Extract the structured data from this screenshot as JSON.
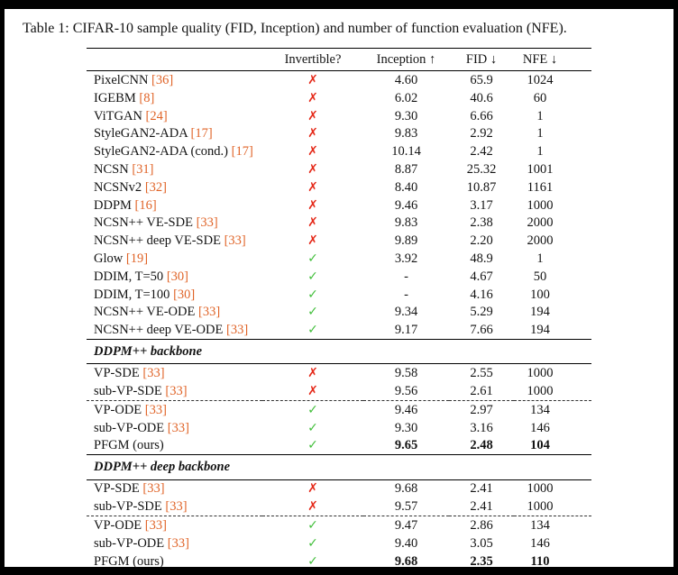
{
  "caption": "Table 1: CIFAR-10 sample quality (FID, Inception) and number of function evaluation (NFE).",
  "marks": {
    "cross": "✗",
    "check": "✓"
  },
  "colors": {
    "cite": "#e06428",
    "cross": "#e52a1a",
    "check": "#43bf3c"
  },
  "table": {
    "columns": [
      {
        "label": "",
        "align": "left",
        "name": "column-header-method"
      },
      {
        "label": "Invertible?",
        "align": "center",
        "name": "column-header-invertible"
      },
      {
        "label": "Inception ↑",
        "align": "center",
        "name": "column-header-inception"
      },
      {
        "label": "FID ↓",
        "align": "center",
        "name": "column-header-fid"
      },
      {
        "label": "NFE ↓",
        "align": "center",
        "name": "column-header-nfe"
      }
    ],
    "sections": [
      {
        "title": "",
        "groups": [
          {
            "rows": [
              {
                "method": "PixelCNN",
                "cite": "[36]",
                "invertible": false,
                "inception": "4.60",
                "fid": "65.9",
                "nfe": "1024",
                "emph": false
              },
              {
                "method": "IGEBM",
                "cite": "[8]",
                "invertible": false,
                "inception": "6.02",
                "fid": "40.6",
                "nfe": "60",
                "emph": false
              },
              {
                "method": "ViTGAN",
                "cite": "[24]",
                "invertible": false,
                "inception": "9.30",
                "fid": "6.66",
                "nfe": "1",
                "emph": false
              },
              {
                "method": "StyleGAN2-ADA",
                "cite": "[17]",
                "invertible": false,
                "inception": "9.83",
                "fid": "2.92",
                "nfe": "1",
                "emph": false
              },
              {
                "method": "StyleGAN2-ADA (cond.)",
                "cite": "[17]",
                "invertible": false,
                "inception": "10.14",
                "fid": "2.42",
                "nfe": "1",
                "emph": false
              },
              {
                "method": "NCSN",
                "cite": "[31]",
                "invertible": false,
                "inception": "8.87",
                "fid": "25.32",
                "nfe": "1001",
                "emph": false
              },
              {
                "method": "NCSNv2",
                "cite": "[32]",
                "invertible": false,
                "inception": "8.40",
                "fid": "10.87",
                "nfe": "1161",
                "emph": false
              },
              {
                "method": "DDPM",
                "cite": "[16]",
                "invertible": false,
                "inception": "9.46",
                "fid": "3.17",
                "nfe": "1000",
                "emph": false
              },
              {
                "method": "NCSN++ VE-SDE",
                "cite": "[33]",
                "invertible": false,
                "inception": "9.83",
                "fid": "2.38",
                "nfe": "2000",
                "emph": false
              },
              {
                "method": "NCSN++ deep VE-SDE",
                "cite": "[33]",
                "invertible": false,
                "inception": "9.89",
                "fid": "2.20",
                "nfe": "2000",
                "emph": false
              },
              {
                "method": "Glow",
                "cite": "[19]",
                "invertible": true,
                "inception": "3.92",
                "fid": "48.9",
                "nfe": "1",
                "emph": false
              },
              {
                "method": "DDIM, T=50",
                "cite": "[30]",
                "invertible": true,
                "inception": "-",
                "fid": "4.67",
                "nfe": "50",
                "emph": false
              },
              {
                "method": "DDIM, T=100",
                "cite": "[30]",
                "invertible": true,
                "inception": "-",
                "fid": "4.16",
                "nfe": "100",
                "emph": false
              },
              {
                "method": "NCSN++ VE-ODE",
                "cite": "[33]",
                "invertible": true,
                "inception": "9.34",
                "fid": "5.29",
                "nfe": "194",
                "emph": false
              },
              {
                "method": "NCSN++ deep VE-ODE",
                "cite": "[33]",
                "invertible": true,
                "inception": "9.17",
                "fid": "7.66",
                "nfe": "194",
                "emph": false
              }
            ]
          }
        ]
      },
      {
        "title": "DDPM++ backbone",
        "groups": [
          {
            "rows": [
              {
                "method": "VP-SDE",
                "cite": "[33]",
                "invertible": false,
                "inception": "9.58",
                "fid": "2.55",
                "nfe": "1000",
                "emph": false
              },
              {
                "method": "sub-VP-SDE",
                "cite": "[33]",
                "invertible": false,
                "inception": "9.56",
                "fid": "2.61",
                "nfe": "1000",
                "emph": false
              }
            ]
          },
          {
            "rows": [
              {
                "method": "VP-ODE",
                "cite": "[33]",
                "invertible": true,
                "inception": "9.46",
                "fid": "2.97",
                "nfe": "134",
                "emph": false
              },
              {
                "method": "sub-VP-ODE",
                "cite": "[33]",
                "invertible": true,
                "inception": "9.30",
                "fid": "3.16",
                "nfe": "146",
                "emph": false
              },
              {
                "method": "PFGM (ours)",
                "cite": "",
                "invertible": true,
                "inception": "9.65",
                "fid": "2.48",
                "nfe": "104",
                "emph": true
              }
            ]
          }
        ]
      },
      {
        "title": "DDPM++ deep backbone",
        "groups": [
          {
            "rows": [
              {
                "method": "VP-SDE",
                "cite": "[33]",
                "invertible": false,
                "inception": "9.68",
                "fid": "2.41",
                "nfe": "1000",
                "emph": false
              },
              {
                "method": "sub-VP-SDE",
                "cite": "[33]",
                "invertible": false,
                "inception": "9.57",
                "fid": "2.41",
                "nfe": "1000",
                "emph": false
              }
            ]
          },
          {
            "rows": [
              {
                "method": "VP-ODE",
                "cite": "[33]",
                "invertible": true,
                "inception": "9.47",
                "fid": "2.86",
                "nfe": "134",
                "emph": false
              },
              {
                "method": "sub-VP-ODE",
                "cite": "[33]",
                "invertible": true,
                "inception": "9.40",
                "fid": "3.05",
                "nfe": "146",
                "emph": false
              },
              {
                "method": "PFGM (ours)",
                "cite": "",
                "invertible": true,
                "inception": "9.68",
                "fid": "2.35",
                "nfe": "110",
                "emph": true
              }
            ]
          }
        ]
      }
    ]
  }
}
